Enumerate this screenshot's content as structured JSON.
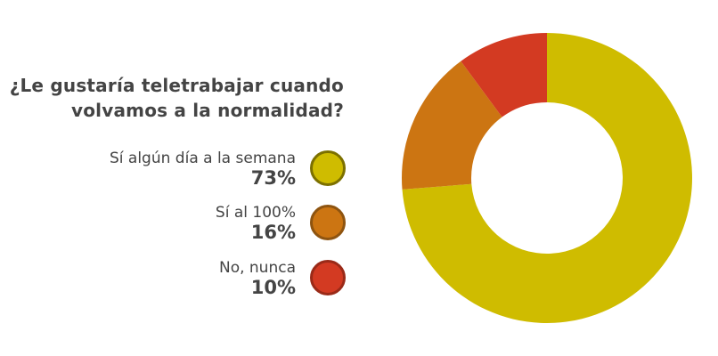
{
  "chart_data": {
    "type": "pie",
    "donut": true,
    "title": "¿Le gustaría teletrabajar cuando volvamos a la normalidad?",
    "title_lines": [
      "¿Le gustaría teletrabajar cuando",
      "volvamos a la normalidad?"
    ],
    "categories": [
      "Sí algún día a la semana",
      "Sí al 100%",
      "No, nunca"
    ],
    "values": [
      73,
      16,
      10
    ],
    "labels": [
      "73%",
      "16%",
      "10%"
    ],
    "colors": [
      "#CFBC00",
      "#CC7512",
      "#D33A22"
    ],
    "border_colors": [
      "#7C7000",
      "#8E5410",
      "#9A2A18"
    ],
    "legend_placement": "left"
  }
}
